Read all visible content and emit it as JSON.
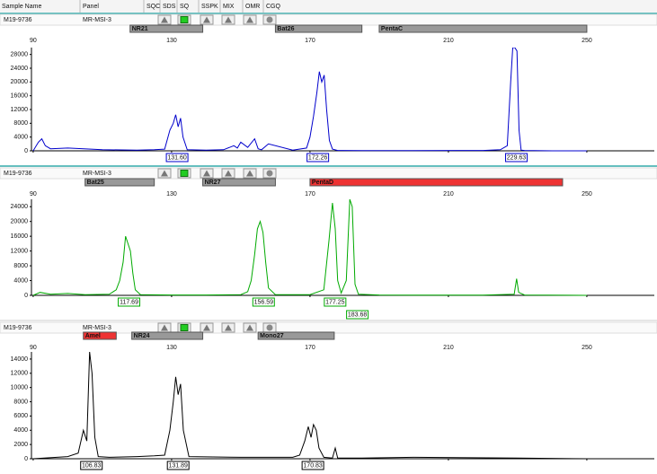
{
  "header": {
    "columns": [
      "Sample Name",
      "Panel",
      "SQO",
      "SDS",
      "SQ",
      "SSPK",
      "MIX",
      "OMR",
      "CGQ"
    ]
  },
  "chart_data": [
    {
      "type": "line",
      "sample_name": "M19-9736",
      "panel": "MR-MSI-3",
      "color": "#0000cc",
      "bins": [
        {
          "name": "NR21",
          "range": [
            118,
            139
          ],
          "color": "#999999"
        },
        {
          "name": "Bat26",
          "range": [
            160,
            185
          ],
          "color": "#999999"
        },
        {
          "name": "PentaC",
          "range": [
            190,
            250
          ],
          "color": "#999999"
        }
      ],
      "xlim": [
        89.5,
        269.5
      ],
      "xticks": [
        90,
        130,
        170,
        210,
        250
      ],
      "ylim": [
        0,
        30000
      ],
      "yticks": [
        0,
        4000,
        8000,
        12000,
        16000,
        20000,
        24000,
        28000
      ],
      "x": [
        90,
        91.5,
        92.5,
        93.5,
        95,
        100,
        110,
        120,
        125,
        128,
        129.5,
        130.5,
        131.2,
        131.9,
        132.6,
        133.3,
        134.5,
        140,
        145,
        148,
        149,
        150,
        152,
        154,
        155,
        156,
        158,
        165,
        169,
        170,
        171,
        172,
        172.7,
        173.4,
        174.1,
        174.8,
        175.6,
        176.5,
        178,
        185,
        200,
        220,
        225,
        227,
        228,
        228.6,
        229.2,
        229.8,
        230.4,
        231,
        232,
        240,
        250
      ],
      "values": [
        0,
        2500,
        3500,
        1500,
        600,
        800,
        300,
        200,
        300,
        500,
        6000,
        8000,
        10500,
        7000,
        9500,
        4000,
        300,
        200,
        300,
        1500,
        800,
        2500,
        1000,
        3500,
        600,
        300,
        2000,
        200,
        800,
        4000,
        10000,
        17000,
        23000,
        20000,
        22000,
        12000,
        3000,
        500,
        100,
        50,
        50,
        100,
        300,
        1500,
        20000,
        30000,
        30000,
        29000,
        6000,
        200,
        100,
        0,
        0
      ],
      "peak_labels": [
        {
          "value": 131.6,
          "label": "131.60"
        },
        {
          "value": 172.26,
          "label": "172.26"
        },
        {
          "value": 229.63,
          "label": "229.63"
        }
      ]
    },
    {
      "type": "line",
      "sample_name": "M19-9736",
      "panel": "MR-MSI-3",
      "color": "#00aa00",
      "bins": [
        {
          "name": "Bat25",
          "range": [
            105,
            125
          ],
          "color": "#999999"
        },
        {
          "name": "NR27",
          "range": [
            139,
            160
          ],
          "color": "#999999"
        },
        {
          "name": "PentaD",
          "range": [
            170,
            243
          ],
          "color": "#ee3333"
        }
      ],
      "xlim": [
        89.5,
        269.5
      ],
      "xticks": [
        90,
        130,
        170,
        210,
        250
      ],
      "ylim": [
        0,
        26000
      ],
      "yticks": [
        0,
        4000,
        8000,
        12000,
        16000,
        20000,
        24000
      ],
      "x": [
        90,
        92,
        95,
        100,
        105,
        112,
        114,
        115,
        116,
        116.7,
        117.4,
        118.1,
        118.8,
        119.5,
        121,
        130,
        140,
        150,
        152,
        153,
        154,
        154.8,
        155.6,
        156.4,
        157.2,
        158,
        160,
        170,
        174,
        175.5,
        176.5,
        177.3,
        178,
        179,
        180.5,
        181.5,
        182.2,
        183,
        184,
        190,
        200,
        220,
        229,
        229.7,
        230.3,
        232,
        250
      ],
      "values": [
        0,
        800,
        300,
        500,
        200,
        300,
        1500,
        4000,
        9000,
        16000,
        14000,
        12000,
        6000,
        1500,
        200,
        100,
        100,
        200,
        1000,
        4000,
        11000,
        18000,
        20000,
        17000,
        9000,
        2000,
        200,
        200,
        1500,
        15000,
        25000,
        18000,
        4000,
        600,
        4000,
        26000,
        24000,
        3000,
        300,
        100,
        50,
        50,
        300,
        4500,
        800,
        100,
        0
      ],
      "peak_labels": [
        {
          "value": 117.69,
          "label": "117.69"
        },
        {
          "value": 156.59,
          "label": "156.59"
        },
        {
          "value": 177.25,
          "label": "177.25"
        },
        {
          "value": 183.68,
          "label": "183.68"
        }
      ]
    },
    {
      "type": "line",
      "sample_name": "M19-9736",
      "panel": "MR-MSI-3",
      "color": "#000000",
      "bins": [
        {
          "name": "Amel",
          "range": [
            104.5,
            114
          ],
          "color": "#ee3333"
        },
        {
          "name": "NR24",
          "range": [
            118.5,
            139
          ],
          "color": "#999999"
        },
        {
          "name": "Mono27",
          "range": [
            155,
            177
          ],
          "color": "#999999"
        }
      ],
      "xlim": [
        89.5,
        269.5
      ],
      "xticks": [
        90,
        130,
        170,
        210,
        250
      ],
      "ylim": [
        0,
        15000
      ],
      "yticks": [
        0,
        2000,
        4000,
        6000,
        8000,
        10000,
        12000,
        14000
      ],
      "x": [
        90,
        100,
        103,
        104.5,
        105.5,
        106.3,
        107,
        107.8,
        108.8,
        112,
        120,
        125,
        128,
        129.5,
        130.5,
        131.2,
        131.9,
        132.6,
        133.4,
        135,
        150,
        165,
        167,
        168.5,
        169.5,
        170.3,
        171,
        171.8,
        172.6,
        174,
        176.5,
        177.3,
        178,
        185,
        200,
        230,
        250
      ],
      "values": [
        0,
        300,
        800,
        4000,
        2500,
        15000,
        12000,
        3000,
        300,
        200,
        300,
        400,
        500,
        4000,
        8000,
        11500,
        9000,
        10500,
        4000,
        300,
        200,
        200,
        500,
        2500,
        4500,
        3000,
        4800,
        4000,
        1500,
        200,
        100,
        1500,
        100,
        100,
        200,
        100,
        0
      ],
      "peak_labels": [
        {
          "value": 106.83,
          "label": "106.83"
        },
        {
          "value": 131.89,
          "label": "131.89"
        },
        {
          "value": 170.83,
          "label": "170.83"
        }
      ]
    }
  ]
}
